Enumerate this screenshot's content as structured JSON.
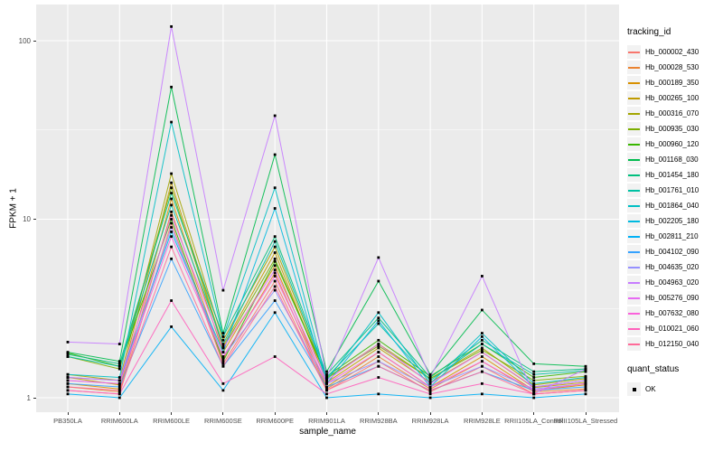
{
  "figure": {
    "legend": {
      "tracking_title": "tracking_id",
      "quant_title": "quant_status",
      "quant_items": [
        {
          "label": "OK",
          "marker": "black-square"
        }
      ]
    }
  },
  "chart_data": {
    "type": "line",
    "title": "",
    "xlabel": "sample_name",
    "ylabel": "FPKM + 1",
    "y_scale": "log10",
    "y_ticks": [
      1,
      10,
      100
    ],
    "ylim": [
      0.85,
      160
    ],
    "grid": true,
    "legend_position": "right",
    "panel_bg": "#EBEBEB",
    "grid_color": "#FFFFFF",
    "axis_text_color": "#4D4D4D",
    "point_marker": {
      "shape": "square",
      "color": "#000000",
      "status_label": "OK"
    },
    "categories": [
      "PB350LA",
      "RRIM600LA",
      "RRIM600LE",
      "RRIM600SE",
      "RRIM600PE",
      "RRIM901LA",
      "RRIM928BA",
      "RRIM928LA",
      "RRIM928LE",
      "RRII105LA_Control",
      "RRII105LA_Stressed"
    ],
    "series": [
      {
        "name": "Hb_000002_430",
        "color": "#F8766D",
        "values": [
          1.1,
          1.05,
          9.5,
          1.55,
          4.5,
          1.1,
          1.6,
          1.08,
          1.5,
          1.05,
          1.1
        ]
      },
      {
        "name": "Hb_000028_530",
        "color": "#EA8331",
        "values": [
          1.15,
          1.08,
          11.0,
          1.65,
          5.0,
          1.12,
          1.7,
          1.12,
          1.6,
          1.08,
          1.12
        ]
      },
      {
        "name": "Hb_000189_350",
        "color": "#D89000",
        "values": [
          1.2,
          1.12,
          13.0,
          1.8,
          5.5,
          1.15,
          1.8,
          1.15,
          1.7,
          1.1,
          1.18
        ]
      },
      {
        "name": "Hb_000265_100",
        "color": "#C09B00",
        "values": [
          1.3,
          1.18,
          16.0,
          1.95,
          6.5,
          1.22,
          1.9,
          1.22,
          1.8,
          1.14,
          1.22
        ]
      },
      {
        "name": "Hb_000316_070",
        "color": "#A3A500",
        "values": [
          1.35,
          1.25,
          18.0,
          2.1,
          7.0,
          1.28,
          2.0,
          1.28,
          1.9,
          1.18,
          1.28
        ]
      },
      {
        "name": "Hb_000935_030",
        "color": "#7CAE00",
        "values": [
          1.7,
          1.45,
          15.0,
          1.9,
          6.0,
          1.3,
          1.95,
          1.28,
          1.85,
          1.25,
          1.32
        ]
      },
      {
        "name": "Hb_000960_120",
        "color": "#39B600",
        "values": [
          1.78,
          1.5,
          10.0,
          1.6,
          5.8,
          1.32,
          2.1,
          1.32,
          2.0,
          1.3,
          1.4
        ]
      },
      {
        "name": "Hb_001168_030",
        "color": "#00BB4E",
        "values": [
          1.8,
          1.6,
          55.0,
          2.3,
          23.0,
          1.4,
          4.5,
          1.35,
          3.1,
          1.55,
          1.5
        ]
      },
      {
        "name": "Hb_001454_180",
        "color": "#00BF7D",
        "values": [
          1.75,
          1.55,
          14.0,
          2.2,
          8.0,
          1.35,
          2.8,
          1.3,
          2.1,
          1.4,
          1.45
        ]
      },
      {
        "name": "Hb_001761_010",
        "color": "#00C1A3",
        "values": [
          1.7,
          1.5,
          12.0,
          2.0,
          7.5,
          1.3,
          2.6,
          1.25,
          2.0,
          1.35,
          1.42
        ]
      },
      {
        "name": "Hb_001864_040",
        "color": "#00BFC4",
        "values": [
          1.35,
          1.3,
          35.0,
          2.2,
          15.0,
          1.25,
          3.0,
          1.2,
          2.3,
          1.2,
          1.3
        ]
      },
      {
        "name": "Hb_002205_180",
        "color": "#00BAE0",
        "values": [
          1.3,
          1.25,
          8.5,
          1.8,
          11.5,
          1.2,
          2.7,
          1.15,
          2.2,
          1.15,
          1.25
        ]
      },
      {
        "name": "Hb_002811_210",
        "color": "#00B0F6",
        "values": [
          1.05,
          1.0,
          2.5,
          1.1,
          3.0,
          1.0,
          1.05,
          1.0,
          1.05,
          1.0,
          1.05
        ]
      },
      {
        "name": "Hb_004102_090",
        "color": "#35A2FF",
        "values": [
          1.2,
          1.15,
          6.0,
          1.5,
          3.5,
          1.15,
          1.5,
          1.1,
          1.4,
          1.1,
          1.15
        ]
      },
      {
        "name": "Hb_004635_020",
        "color": "#9590FF",
        "values": [
          1.25,
          1.2,
          9.0,
          1.7,
          4.0,
          1.2,
          1.6,
          1.15,
          1.5,
          1.12,
          1.2
        ]
      },
      {
        "name": "Hb_004963_020",
        "color": "#C77CFF",
        "values": [
          2.05,
          2.0,
          120.0,
          4.0,
          38.0,
          1.3,
          6.1,
          1.3,
          4.8,
          1.05,
          1.45
        ]
      },
      {
        "name": "Hb_005276_090",
        "color": "#E76BF3",
        "values": [
          1.3,
          1.25,
          10.5,
          1.9,
          5.2,
          1.25,
          2.0,
          1.2,
          1.8,
          1.15,
          1.25
        ]
      },
      {
        "name": "Hb_007632_080",
        "color": "#FA62DB",
        "values": [
          1.25,
          1.2,
          8.0,
          1.7,
          4.8,
          1.2,
          1.8,
          1.15,
          1.6,
          1.1,
          1.2
        ]
      },
      {
        "name": "Hb_010021_060",
        "color": "#FF62BC",
        "values": [
          1.1,
          1.05,
          3.5,
          1.2,
          1.7,
          1.05,
          1.3,
          1.05,
          1.2,
          1.05,
          1.1
        ]
      },
      {
        "name": "Hb_012150_040",
        "color": "#FF6A98",
        "values": [
          1.15,
          1.1,
          7.0,
          1.5,
          4.2,
          1.1,
          1.5,
          1.1,
          1.4,
          1.05,
          1.1
        ]
      }
    ]
  }
}
